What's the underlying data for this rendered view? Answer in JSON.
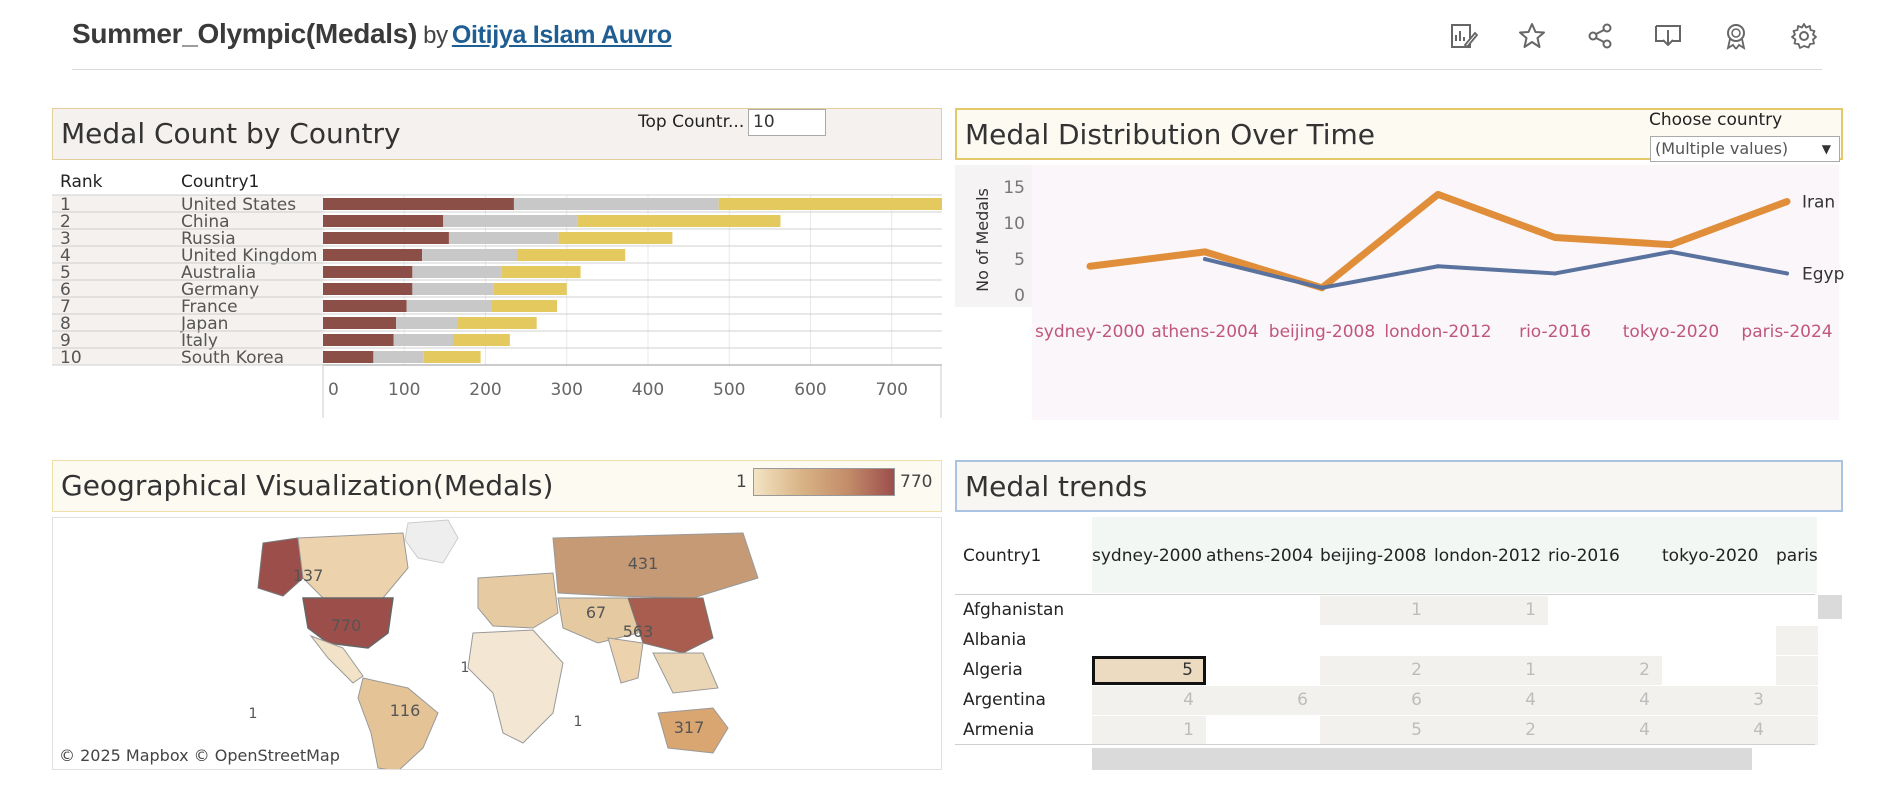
{
  "header": {
    "title": "Summer_Olympic(Medals)",
    "by": "by",
    "author": "Oitijya Islam Auvro",
    "tools": [
      "edit-icon",
      "star-icon",
      "share-icon",
      "download-icon",
      "badge-icon",
      "gear-icon"
    ]
  },
  "panels": {
    "medal_count": "Medal Count by Country",
    "distribution": "Medal Distribution Over Time",
    "geo": "Geographical Visualization(Medals)",
    "trends": "Medal trends"
  },
  "controls": {
    "top_countries_label": "Top Countr...",
    "top_countries_value": "10",
    "choose_country_label": "Choose country",
    "choose_country_value": "(Multiple values)"
  },
  "legend": {
    "min": "1",
    "max": "770"
  },
  "map": {
    "credit": "© 2025 Mapbox  © OpenStreetMap",
    "labels": [
      "137",
      "770",
      "431",
      "67",
      "563",
      "116",
      "317",
      "1",
      "1",
      "1"
    ]
  },
  "chart_data": [
    {
      "type": "bar",
      "stacked": true,
      "orientation": "horizontal",
      "column_headers": [
        "Rank",
        "Country1"
      ],
      "ranks": [
        "1",
        "2",
        "3",
        "4",
        "5",
        "6",
        "7",
        "8",
        "9",
        "10"
      ],
      "categories": [
        "United States",
        "China",
        "Russia",
        "United Kingdom",
        "Australia",
        "Germany",
        "France",
        "Japan",
        "Italy",
        "South Korea"
      ],
      "series": [
        {
          "color": "#8b4f47",
          "values": [
            235,
            148,
            155,
            122,
            110,
            110,
            103,
            90,
            87,
            62
          ]
        },
        {
          "color": "#c8c8c8",
          "values": [
            252,
            165,
            135,
            118,
            110,
            100,
            105,
            75,
            73,
            62
          ]
        },
        {
          "color": "#e4c95e",
          "values": [
            283,
            250,
            140,
            132,
            97,
            90,
            80,
            98,
            70,
            70
          ]
        }
      ],
      "xlim": [
        0,
        800
      ],
      "xticks": [
        "0",
        "100",
        "200",
        "300",
        "400",
        "500",
        "600",
        "700",
        "800"
      ]
    },
    {
      "type": "line",
      "x": [
        "sydney-2000",
        "athens-2004",
        "beijing-2008",
        "london-2012",
        "rio-2016",
        "tokyo-2020",
        "paris-2024"
      ],
      "ylabel": "No of Medals",
      "ylim": [
        0,
        16
      ],
      "yticks": [
        "0",
        "5",
        "10",
        "15"
      ],
      "series": [
        {
          "name": "Iran",
          "color": "#e08e3a",
          "values": [
            4,
            6,
            1,
            14,
            8,
            7,
            13
          ]
        },
        {
          "name": "Egypt",
          "color": "#5a729e",
          "values": [
            null,
            5,
            1,
            4,
            3,
            6,
            3
          ]
        }
      ]
    },
    {
      "type": "table",
      "row_header": "Country1",
      "columns": [
        "sydney-2000",
        "athens-2004",
        "beijing-2008",
        "london-2012",
        "rio-2016",
        "tokyo-2020",
        "paris"
      ],
      "rows": [
        {
          "country": "Afghanistan",
          "values": [
            "",
            "",
            "1",
            "1",
            "",
            "",
            ""
          ]
        },
        {
          "country": "Albania",
          "values": [
            "",
            "",
            "",
            "",
            "",
            "",
            ""
          ]
        },
        {
          "country": "Algeria",
          "values": [
            "5",
            "",
            "2",
            "1",
            "2",
            "",
            ""
          ]
        },
        {
          "country": "Argentina",
          "values": [
            "4",
            "6",
            "6",
            "4",
            "4",
            "3",
            ""
          ]
        },
        {
          "country": "Armenia",
          "values": [
            "1",
            "",
            "5",
            "2",
            "4",
            "4",
            ""
          ]
        }
      ]
    }
  ]
}
